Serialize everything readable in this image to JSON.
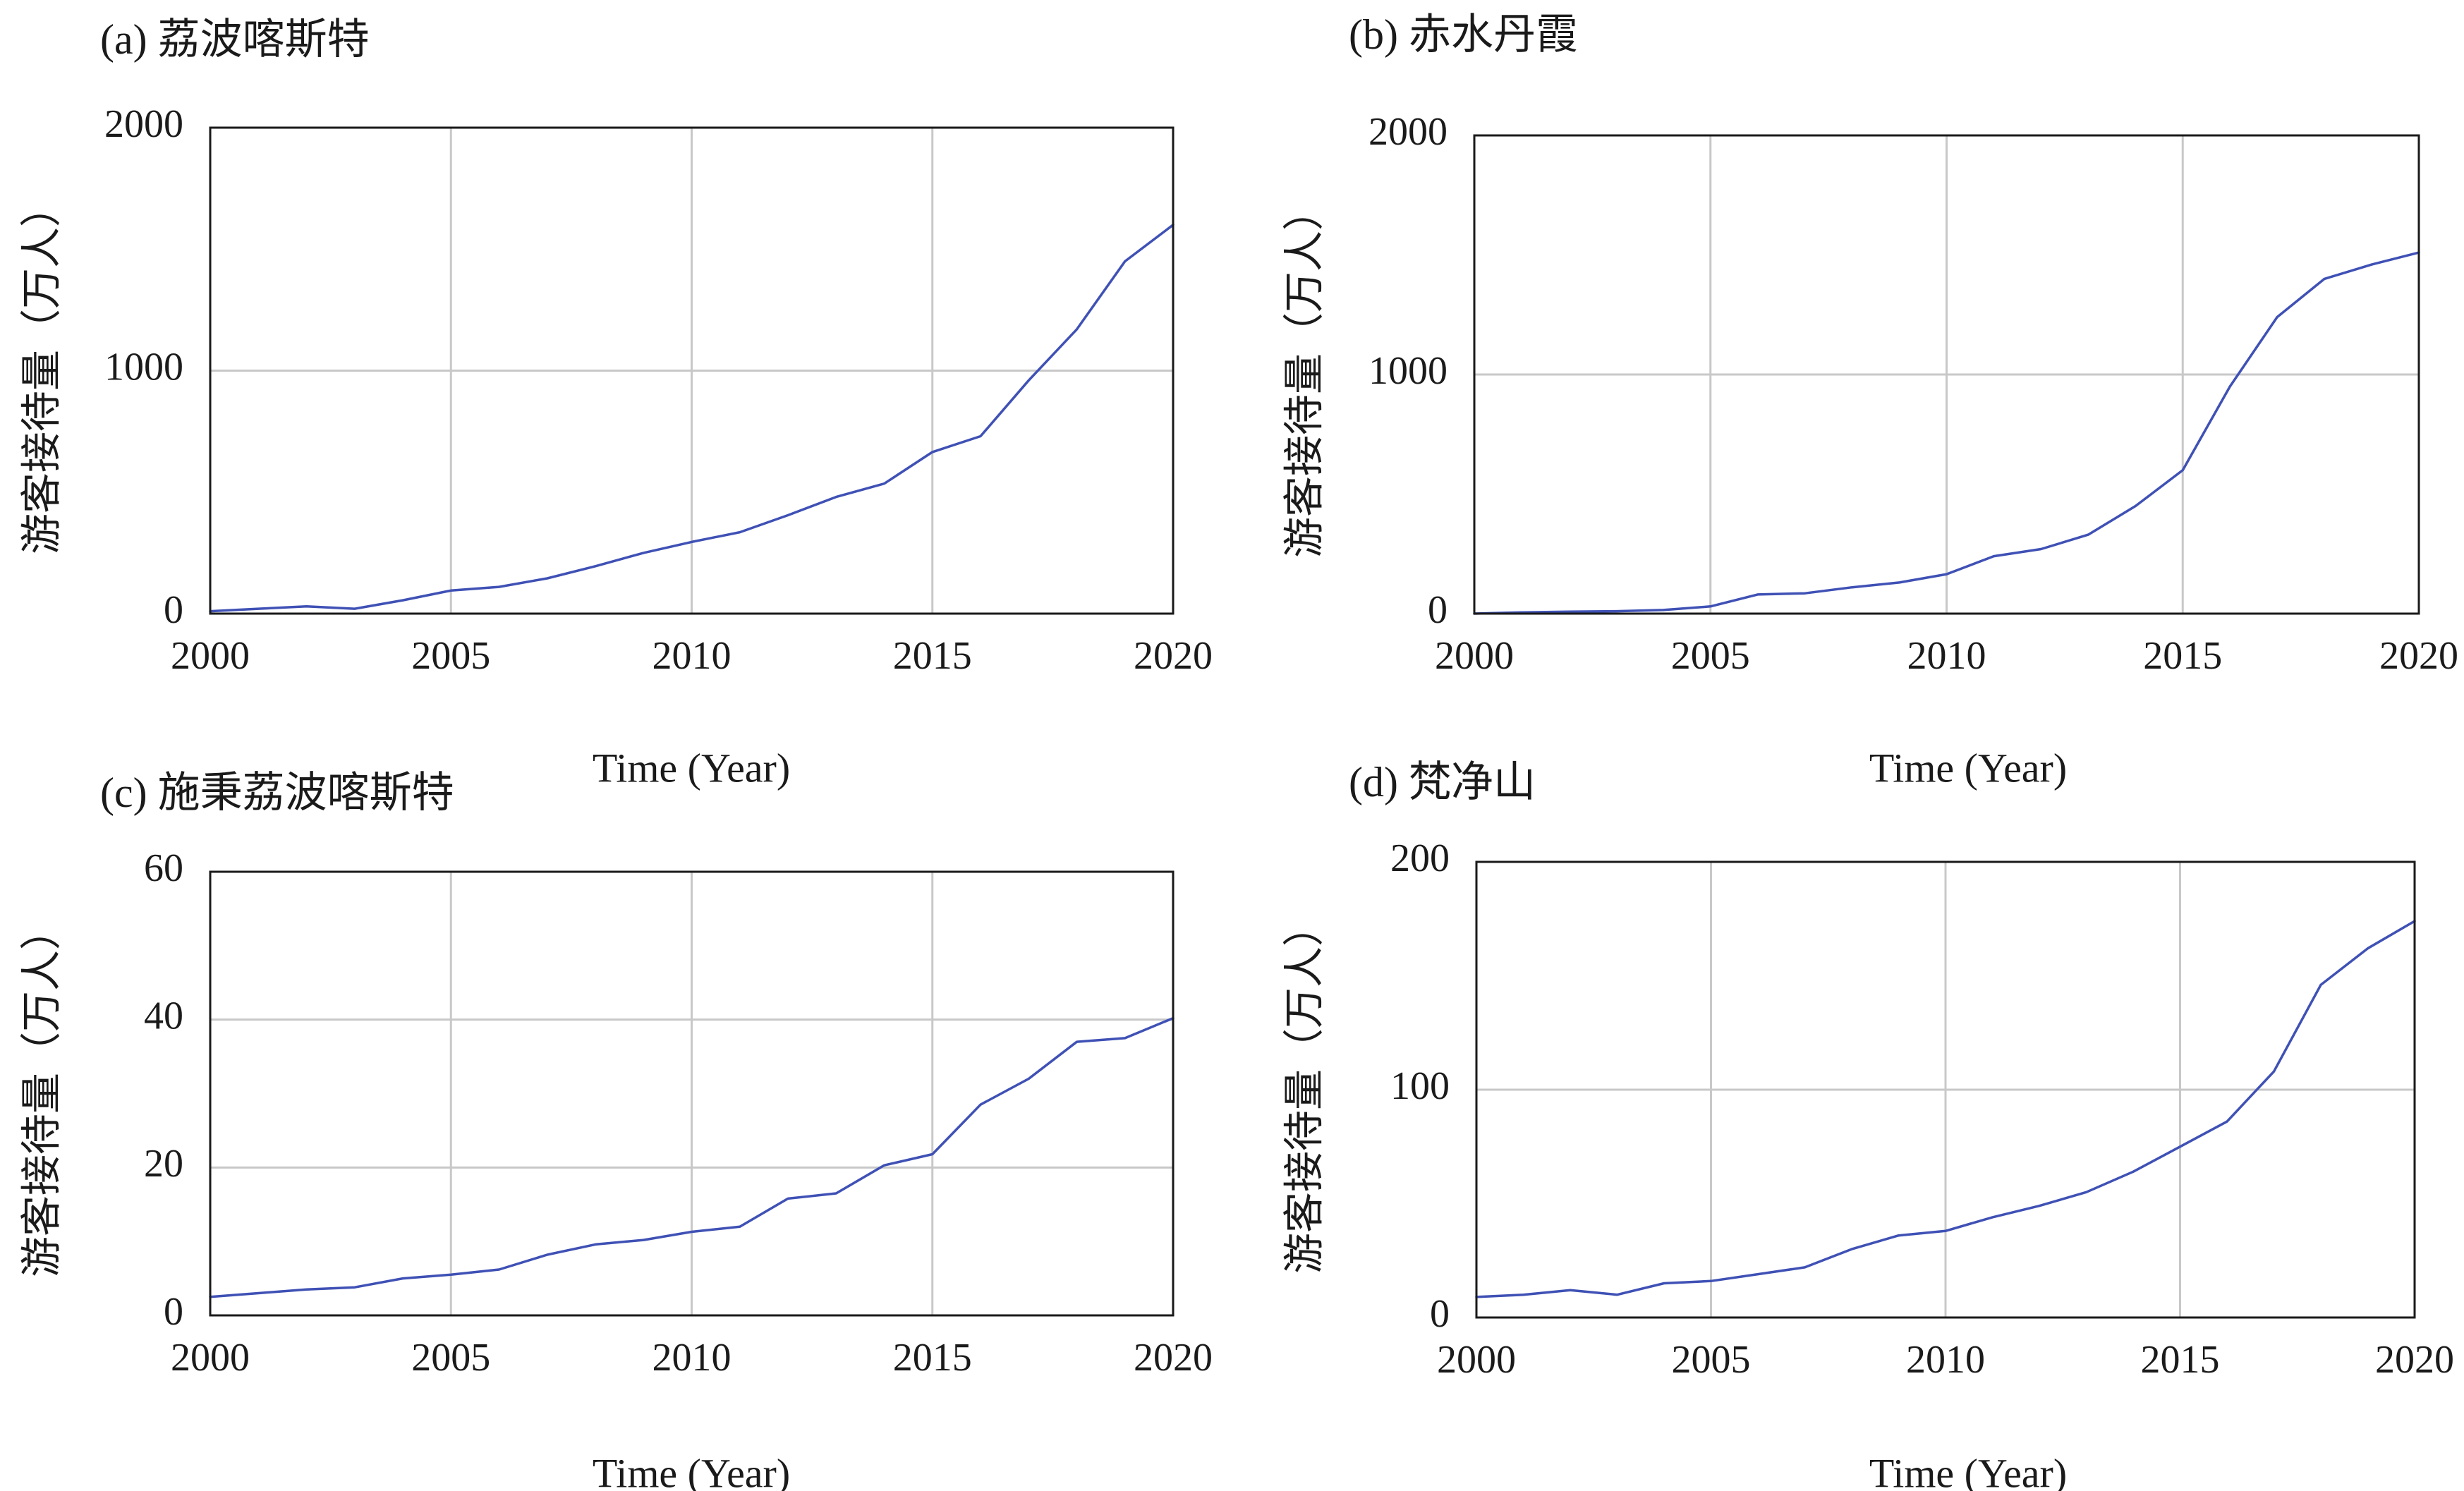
{
  "colors": {
    "series": "#3f51b5",
    "grid": "#c8c8c8",
    "frame": "#1a1a1a"
  },
  "chart_data": [
    {
      "type": "line",
      "title": "(a) 荔波喀斯特",
      "xlabel": "Time (Year)",
      "ylabel": "游客接待量（万人）",
      "xlim": [
        2000,
        2020
      ],
      "ylim": [
        0,
        2000
      ],
      "x_ticks": [
        "2000",
        "2005",
        "2010",
        "2015",
        "2020"
      ],
      "y_ticks": [
        "0",
        "1000",
        "2000"
      ],
      "grid": true,
      "x": [
        2000,
        2001,
        2002,
        2003,
        2004,
        2005,
        2006,
        2007,
        2008,
        2009,
        2010,
        2011,
        2012,
        2013,
        2014,
        2015,
        2016,
        2017,
        2018,
        2019,
        2020
      ],
      "values": [
        10,
        20,
        30,
        20,
        55,
        95,
        110,
        145,
        195,
        250,
        295,
        335,
        405,
        480,
        535,
        665,
        730,
        960,
        1170,
        1450,
        1600
      ]
    },
    {
      "type": "line",
      "title": "(b) 赤水丹霞",
      "xlabel": "Time (Year)",
      "ylabel": "游客接待量（万人）",
      "xlim": [
        2000,
        2020
      ],
      "ylim": [
        0,
        2000
      ],
      "x_ticks": [
        "2000",
        "2005",
        "2010",
        "2015",
        "2020"
      ],
      "y_ticks": [
        "0",
        "1000",
        "2000"
      ],
      "grid": true,
      "x": [
        2000,
        2001,
        2002,
        2003,
        2004,
        2005,
        2006,
        2007,
        2008,
        2009,
        2010,
        2011,
        2012,
        2013,
        2014,
        2015,
        2016,
        2017,
        2018,
        2019,
        2020
      ],
      "values": [
        0,
        5,
        8,
        10,
        15,
        30,
        80,
        85,
        110,
        130,
        165,
        240,
        270,
        330,
        450,
        600,
        950,
        1240,
        1400,
        1460,
        1510
      ]
    },
    {
      "type": "line",
      "title": "(c) 施秉荔波喀斯特",
      "xlabel": "Time (Year)",
      "ylabel": "游客接待量（万人）",
      "xlim": [
        2000,
        2020
      ],
      "ylim": [
        0,
        60
      ],
      "x_ticks": [
        "2000",
        "2005",
        "2010",
        "2015",
        "2020"
      ],
      "y_ticks": [
        "0",
        "20",
        "40",
        "60"
      ],
      "grid": true,
      "x": [
        2000,
        2001,
        2002,
        2003,
        2004,
        2005,
        2006,
        2007,
        2008,
        2009,
        2010,
        2011,
        2012,
        2013,
        2014,
        2015,
        2016,
        2017,
        2018,
        2019,
        2020
      ],
      "values": [
        2.5,
        3,
        3.5,
        3.8,
        5,
        5.5,
        6.2,
        8.2,
        9.6,
        10.2,
        11.3,
        12,
        15.8,
        16.5,
        20.3,
        21.8,
        28.5,
        32,
        37,
        37.5,
        40.2
      ]
    },
    {
      "type": "line",
      "title": "(d) 梵净山",
      "xlabel": "Time (Year)",
      "ylabel": "游客接待量（万人）",
      "xlim": [
        2000,
        2020
      ],
      "ylim": [
        0,
        200
      ],
      "x_ticks": [
        "2000",
        "2005",
        "2010",
        "2015",
        "2020"
      ],
      "y_ticks": [
        "0",
        "100",
        "200"
      ],
      "grid": true,
      "x": [
        2000,
        2001,
        2002,
        2003,
        2004,
        2005,
        2006,
        2007,
        2008,
        2009,
        2010,
        2011,
        2012,
        2013,
        2014,
        2015,
        2016,
        2017,
        2018,
        2019,
        2020
      ],
      "values": [
        9,
        10,
        12,
        10,
        15,
        16,
        19,
        22,
        30,
        36,
        38,
        44,
        49,
        55,
        64,
        75,
        86,
        108,
        146,
        162,
        174
      ]
    }
  ]
}
